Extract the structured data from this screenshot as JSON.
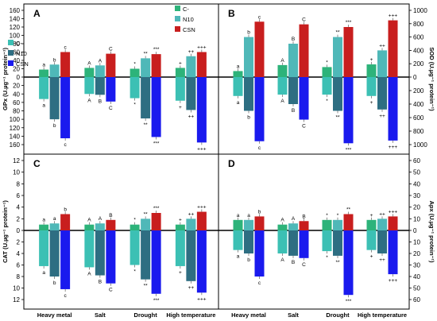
{
  "colors": {
    "C-": "#2db37a",
    "N10": "#4fb8b8",
    "CSN": "#c81e1e",
    "CSN_down": "#1a1aee",
    "N10_down": "#2e6e82",
    "C-_down": "#3cc0b4"
  },
  "charts": [
    {
      "panel": "A",
      "left_label": "GPx (U.µg⁻¹ protein⁻¹)",
      "right_label": "",
      "legend": [
        "C-",
        "N10",
        "CSN"
      ],
      "legend_pos": "top-right",
      "top_ticks": [
        "0",
        "20",
        "40",
        "60",
        "80",
        "100",
        "120",
        "140",
        "160"
      ],
      "bottom_ticks": [
        "0",
        "20",
        "40",
        "60",
        "80",
        "100",
        "120",
        "140",
        "160"
      ],
      "right_ticks_top": [],
      "right_ticks_bottom": []
    },
    {
      "panel": "B",
      "left_label": "",
      "right_label": "SOD (U.µg⁻¹ protein⁻¹)",
      "legend": [],
      "top_ticks": [],
      "bottom_ticks": [],
      "right_ticks_top": [
        "0",
        "200",
        "400",
        "600",
        "800",
        "1000"
      ],
      "right_ticks_bottom": [
        "0",
        "200",
        "400",
        "600",
        "800",
        "1000"
      ]
    },
    {
      "panel": "C",
      "left_label": "CAT (U.µg⁻¹ protein⁻¹)",
      "right_label": "",
      "legend": [
        "C-",
        "N10",
        "CSN"
      ],
      "legend_pos": "top-left",
      "top_ticks": [
        "0",
        "2",
        "4",
        "6",
        "8",
        "10",
        "12"
      ],
      "bottom_ticks": [
        "0",
        "2",
        "4",
        "6",
        "8",
        "10",
        "12"
      ],
      "right_ticks_top": [],
      "right_ticks_bottom": []
    },
    {
      "panel": "D",
      "left_label": "",
      "right_label": "Apx (U.µg⁻¹ protein⁻¹)",
      "legend": [],
      "top_ticks": [],
      "bottom_ticks": [],
      "right_ticks_top": [
        "0",
        "10",
        "20",
        "30",
        "40",
        "50",
        "60"
      ],
      "right_ticks_bottom": [
        "0",
        "10",
        "20",
        "30",
        "40",
        "50",
        "60"
      ]
    }
  ],
  "chart_data": [
    {
      "type": "bar",
      "panel": "A",
      "ylabel": "GPx (U.µg⁻¹ protein⁻¹)",
      "categories": [
        "Heavy metal",
        "Salt",
        "Drought",
        "High  temperature"
      ],
      "ylim_top": [
        0,
        160
      ],
      "ylim_bottom": [
        0,
        160
      ],
      "series_top": [
        {
          "name": "C-",
          "values": [
            18,
            22,
            20,
            22
          ],
          "labels": [
            "a",
            "A",
            "*",
            "+"
          ]
        },
        {
          "name": "N10",
          "values": [
            30,
            28,
            45,
            50
          ],
          "labels": [
            "b",
            "A",
            "**",
            "++"
          ]
        },
        {
          "name": "CSN",
          "values": [
            60,
            56,
            55,
            60
          ],
          "labels": [
            "c",
            "C",
            "***",
            "+++"
          ]
        }
      ],
      "series_bottom": [
        {
          "name": "C-",
          "values": [
            52,
            40,
            50,
            56
          ],
          "labels": [
            "a",
            "A",
            "*",
            "+"
          ]
        },
        {
          "name": "N10",
          "values": [
            100,
            42,
            98,
            78
          ],
          "labels": [
            "b",
            "B",
            "**",
            "++"
          ]
        },
        {
          "name": "CSN",
          "values": [
            145,
            58,
            142,
            155
          ],
          "labels": [
            "c",
            "C",
            "***",
            "+++"
          ]
        }
      ]
    },
    {
      "type": "bar",
      "panel": "B",
      "ylabel": "SOD (U.µg⁻¹ protein⁻¹)",
      "categories": [
        "Heavy metal",
        "Salt",
        "Drought",
        "High  temperature"
      ],
      "ylim_top": [
        0,
        1000
      ],
      "ylim_bottom": [
        0,
        1000
      ],
      "series_top": [
        {
          "name": "C-",
          "values": [
            90,
            180,
            150,
            190
          ],
          "labels": [
            "a",
            "A",
            "*",
            "+"
          ]
        },
        {
          "name": "N10",
          "values": [
            600,
            500,
            600,
            400
          ],
          "labels": [
            "b",
            "B",
            "**",
            "++"
          ]
        },
        {
          "name": "CSN",
          "values": [
            830,
            790,
            750,
            850
          ],
          "labels": [
            "c",
            "C",
            "***",
            "+++"
          ]
        }
      ],
      "series_bottom": [
        {
          "name": "C-",
          "values": [
            280,
            260,
            260,
            280
          ],
          "labels": [
            "a",
            "A",
            "*",
            "+"
          ]
        },
        {
          "name": "N10",
          "values": [
            500,
            400,
            500,
            480
          ],
          "labels": [
            "b",
            "B",
            "**",
            "++"
          ]
        },
        {
          "name": "CSN",
          "values": [
            950,
            630,
            980,
            940
          ],
          "labels": [
            "c",
            "C",
            "***",
            "+++"
          ]
        }
      ]
    },
    {
      "type": "bar",
      "panel": "C",
      "ylabel": "CAT (U.µg⁻¹ protein⁻¹)",
      "categories": [
        "Heavy metal",
        "Salt",
        "Drought",
        "High  temperature"
      ],
      "ylim_top": [
        0,
        12
      ],
      "ylim_bottom": [
        0,
        12
      ],
      "series_top": [
        {
          "name": "C-",
          "values": [
            1.0,
            1.0,
            1.0,
            1.0
          ],
          "labels": [
            "a",
            "A",
            "*",
            "+"
          ]
        },
        {
          "name": "N10",
          "values": [
            1.2,
            1.2,
            2.0,
            2.0
          ],
          "labels": [
            "a",
            "A",
            "**",
            "++"
          ]
        },
        {
          "name": "CSN",
          "values": [
            2.8,
            1.8,
            3.0,
            3.2
          ],
          "labels": [
            "b",
            "B",
            "***",
            "+++"
          ]
        }
      ],
      "series_bottom": [
        {
          "name": "C-",
          "values": [
            6.2,
            6.4,
            6.0,
            6.2
          ],
          "labels": [
            "a",
            "A",
            "*",
            "+"
          ]
        },
        {
          "name": "N10",
          "values": [
            8.0,
            7.8,
            8.5,
            8.8
          ],
          "labels": [
            "b",
            "B",
            "**",
            "++"
          ]
        },
        {
          "name": "CSN",
          "values": [
            10.2,
            9.2,
            11.0,
            10.8
          ],
          "labels": [
            "c",
            "C",
            "***",
            "+++"
          ]
        }
      ]
    },
    {
      "type": "bar",
      "panel": "D",
      "ylabel": "Apx (U.µg⁻¹ protein⁻¹)",
      "categories": [
        "Heavy metal",
        "Salt",
        "Drought",
        "High  temperature"
      ],
      "ylim_top": [
        0,
        60
      ],
      "ylim_bottom": [
        0,
        60
      ],
      "series_top": [
        {
          "name": "C-",
          "values": [
            9,
            5,
            9,
            9
          ],
          "labels": [
            "a",
            "A",
            "*",
            "+"
          ]
        },
        {
          "name": "N10",
          "values": [
            9,
            6,
            9,
            10
          ],
          "labels": [
            "a",
            "A",
            "*",
            "++"
          ]
        },
        {
          "name": "CSN",
          "values": [
            12,
            8,
            14,
            12
          ],
          "labels": [
            "b",
            "B",
            "**",
            "+++"
          ]
        }
      ],
      "series_bottom": [
        {
          "name": "C-",
          "values": [
            17,
            20,
            18,
            17
          ],
          "labels": [
            "a",
            "A",
            "*",
            "+"
          ]
        },
        {
          "name": "N10",
          "values": [
            20,
            22,
            22,
            20
          ],
          "labels": [
            "b",
            "B",
            "**",
            "++"
          ]
        },
        {
          "name": "CSN",
          "values": [
            40,
            24,
            56,
            38
          ],
          "labels": [
            "c",
            "C",
            "***",
            "+++"
          ]
        }
      ]
    }
  ]
}
